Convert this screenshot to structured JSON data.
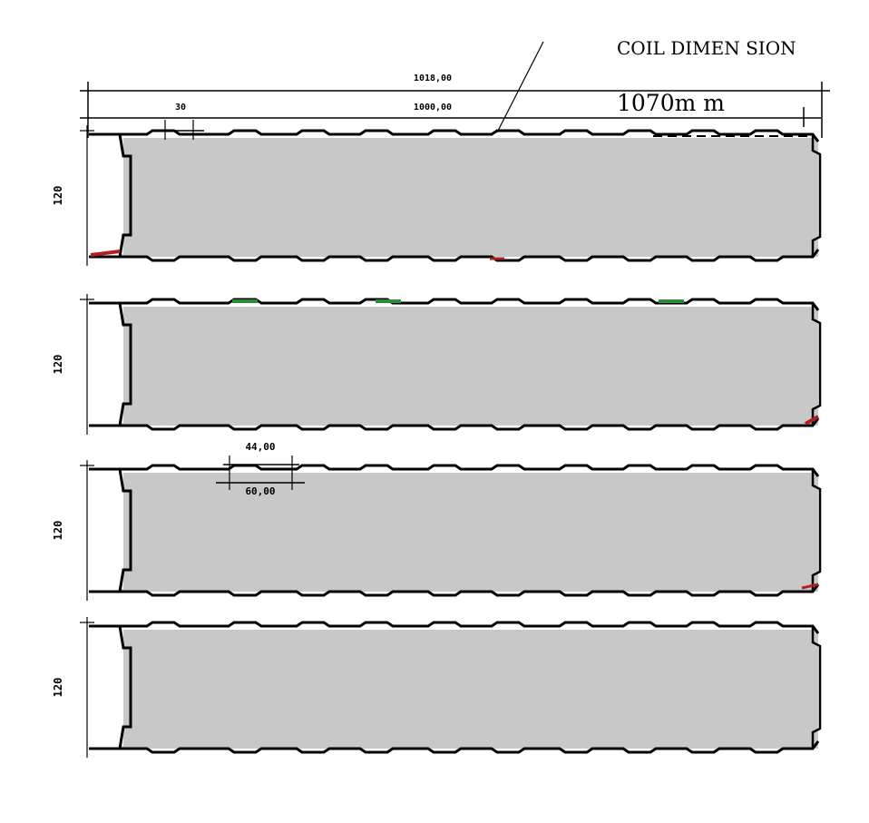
{
  "annotations": {
    "coil_title": "COIL  DIMEN SION",
    "coil_value": "1070m m",
    "overall_width": "1018,00",
    "effective_width": "1000,00",
    "edge_offset": "30",
    "rib_top_width": "44,00",
    "rib_bottom_width": "60,00"
  },
  "panels": [
    {
      "thickness": "120"
    },
    {
      "thickness": "120"
    },
    {
      "thickness": "120"
    },
    {
      "thickness": "120"
    }
  ],
  "colors": {
    "panel_fill": "#c8c8c8",
    "outline": "#000000",
    "highlight_red": "#b02020",
    "highlight_green": "#2e8b3a"
  }
}
